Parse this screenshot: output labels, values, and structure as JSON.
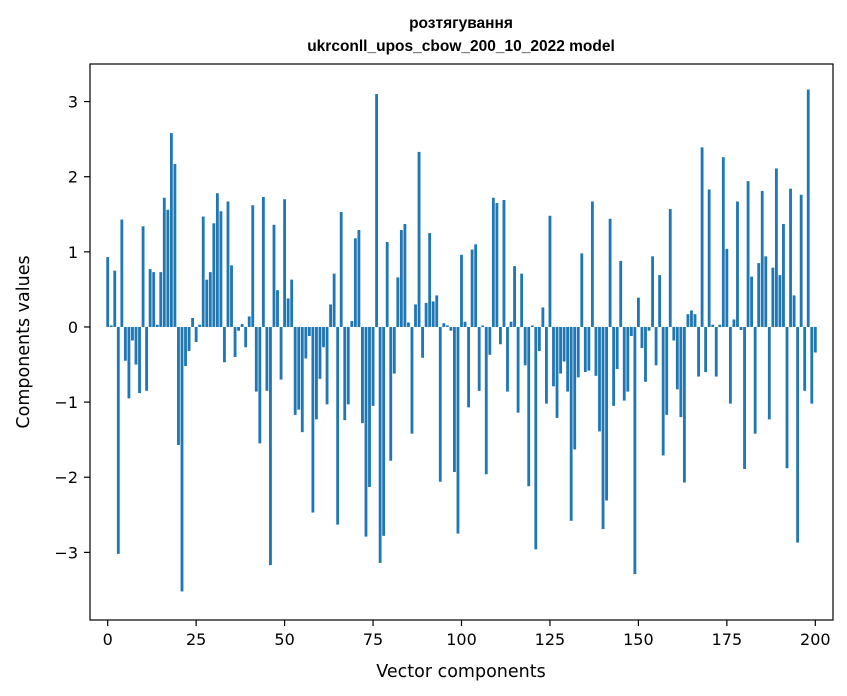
{
  "chart_data": {
    "type": "bar",
    "title": "розтягування",
    "subtitle": "ukrconll_upos_cbow_200_10_2022 model",
    "xlabel": "Vector components",
    "ylabel": "Components values",
    "xlim": [
      -5,
      205
    ],
    "ylim": [
      -3.9,
      3.5
    ],
    "xticks": [
      0,
      25,
      50,
      75,
      100,
      125,
      150,
      175,
      200
    ],
    "yticks": [
      -3,
      -2,
      -1,
      0,
      1,
      2,
      3
    ],
    "xtick_labels": [
      "0",
      "25",
      "50",
      "75",
      "100",
      "125",
      "150",
      "175",
      "200"
    ],
    "ytick_labels": [
      "−3",
      "−2",
      "−1",
      "0",
      "1",
      "2",
      "3"
    ],
    "grid": false,
    "bar_color": "#1f77b4",
    "values": [
      0.93,
      0.02,
      0.75,
      -3.02,
      1.43,
      -0.45,
      -0.95,
      -0.18,
      -0.5,
      -0.88,
      1.34,
      -0.85,
      0.77,
      0.73,
      0.03,
      0.73,
      1.72,
      1.56,
      2.58,
      2.17,
      -1.57,
      -3.52,
      -0.52,
      -0.32,
      0.12,
      -0.2,
      0.03,
      1.47,
      0.63,
      0.73,
      1.38,
      1.78,
      1.54,
      -0.47,
      1.67,
      0.82,
      -0.4,
      -0.05,
      0.04,
      -0.27,
      0.14,
      1.62,
      -0.86,
      -1.55,
      1.73,
      -0.85,
      -3.17,
      1.36,
      0.49,
      -0.7,
      1.7,
      0.38,
      0.63,
      -1.17,
      -1.1,
      -1.4,
      -0.42,
      -0.12,
      -2.47,
      -1.23,
      -0.69,
      -0.27,
      -1.03,
      0.3,
      0.71,
      -2.63,
      1.53,
      -1.24,
      -1.03,
      0.08,
      1.18,
      1.29,
      -1.28,
      -2.79,
      -2.13,
      -1.05,
      3.1,
      -3.14,
      -2.78,
      1.13,
      -1.78,
      -0.62,
      0.66,
      1.29,
      1.37,
      0.06,
      -1.42,
      0.3,
      2.33,
      -0.41,
      0.32,
      1.25,
      0.34,
      0.42,
      -2.06,
      0.05,
      0.02,
      -0.05,
      -1.93,
      -2.75,
      0.96,
      0.07,
      -1.07,
      1.03,
      1.1,
      -0.85,
      0.02,
      -1.96,
      -0.37,
      1.72,
      1.65,
      -0.23,
      1.69,
      -0.86,
      0.07,
      0.81,
      -1.14,
      0.71,
      -0.51,
      -2.12,
      0.02,
      -2.96,
      -0.32,
      0.26,
      -1.02,
      1.48,
      -0.79,
      -1.21,
      -0.62,
      -0.46,
      -0.86,
      -2.58,
      -1.63,
      -0.67,
      0.98,
      -0.6,
      -0.58,
      1.67,
      -0.65,
      -1.39,
      -2.69,
      -2.31,
      1.44,
      -1.05,
      -0.56,
      0.88,
      -0.98,
      -0.86,
      -0.12,
      -3.29,
      0.39,
      -0.28,
      -0.73,
      -0.05,
      0.94,
      -0.51,
      0.69,
      -1.71,
      -1.17,
      1.57,
      -0.18,
      -0.83,
      -1.2,
      -2.07,
      0.17,
      0.22,
      0.17,
      -0.66,
      2.39,
      -0.6,
      1.83,
      0.03,
      -0.66,
      0.03,
      2.26,
      1.04,
      -1.02,
      0.1,
      1.67,
      -0.04,
      -1.89,
      1.94,
      0.67,
      -1.42,
      0.85,
      1.81,
      0.94,
      -1.23,
      0.79,
      2.11,
      0.69,
      1.37,
      -1.88,
      1.84,
      0.42,
      -2.87,
      1.76,
      -0.85,
      3.16,
      -1.02,
      -0.34
    ]
  }
}
